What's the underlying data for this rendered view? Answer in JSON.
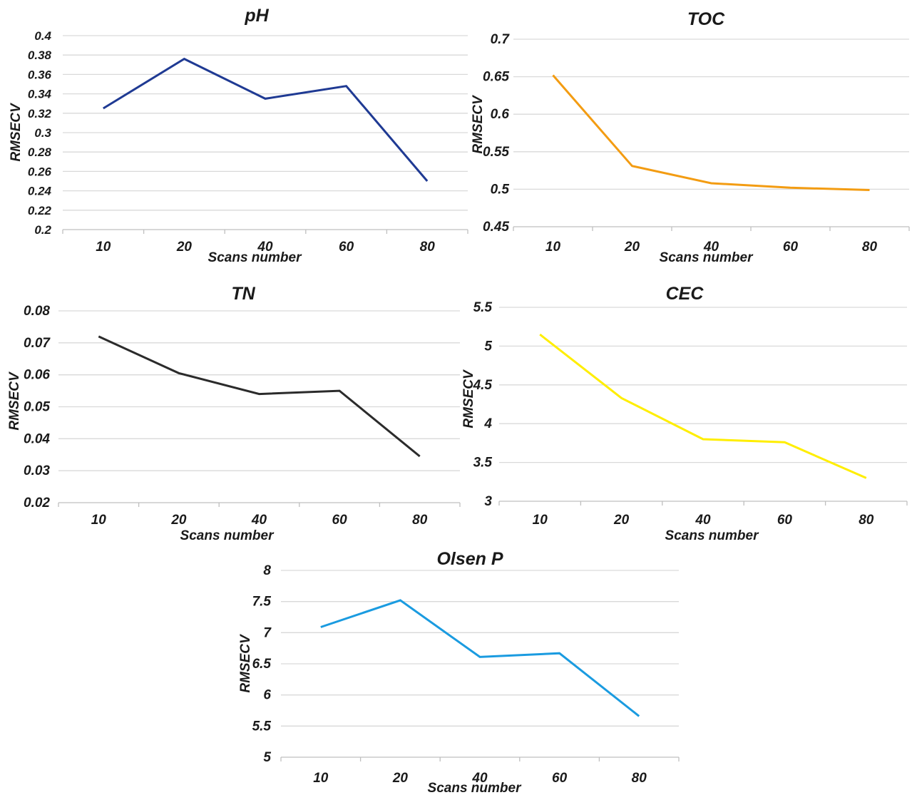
{
  "chart_data": [
    {
      "type": "line",
      "title": "pH",
      "xlabel": "Scans number",
      "ylabel": "RMSECV",
      "categories": [
        "10",
        "20",
        "40",
        "60",
        "80"
      ],
      "values": [
        0.325,
        0.376,
        0.335,
        0.348,
        0.25
      ],
      "ylim": [
        0.2,
        0.4
      ],
      "yticks": [
        "0.2",
        "0.22",
        "0.24",
        "0.26",
        "0.28",
        "0.3",
        "0.32",
        "0.34",
        "0.36",
        "0.38",
        "0.4"
      ],
      "grid": true,
      "color": "#1f3a93"
    },
    {
      "type": "line",
      "title": "TOC",
      "xlabel": "Scans number",
      "ylabel": "RMSECV",
      "categories": [
        "10",
        "20",
        "40",
        "60",
        "80"
      ],
      "values": [
        0.652,
        0.531,
        0.508,
        0.502,
        0.499
      ],
      "ylim": [
        0.45,
        0.7
      ],
      "yticks": [
        "0.45",
        "0.5",
        "0.55",
        "0.6",
        "0.65",
        "0.7"
      ],
      "grid": true,
      "color": "#f39c12"
    },
    {
      "type": "line",
      "title": "TN",
      "xlabel": "Scans number",
      "ylabel": "RMSECV",
      "categories": [
        "10",
        "20",
        "40",
        "60",
        "80"
      ],
      "values": [
        0.072,
        0.0605,
        0.054,
        0.055,
        0.0345
      ],
      "ylim": [
        0.02,
        0.08
      ],
      "yticks": [
        "0.02",
        "0.03",
        "0.04",
        "0.05",
        "0.06",
        "0.07",
        "0.08"
      ],
      "grid": true,
      "color": "#2b2b2b"
    },
    {
      "type": "line",
      "title": "CEC",
      "xlabel": "Scans number",
      "ylabel": "RMSECV",
      "categories": [
        "10",
        "20",
        "40",
        "60",
        "80"
      ],
      "values": [
        5.15,
        4.33,
        3.8,
        3.76,
        3.3
      ],
      "ylim": [
        3,
        5.5
      ],
      "yticks": [
        "3",
        "3.5",
        "4",
        "4.5",
        "5",
        "5.5"
      ],
      "grid": true,
      "color": "#ffee00"
    },
    {
      "type": "line",
      "title": "Olsen P",
      "xlabel": "Scans number",
      "ylabel": "RMSECV",
      "categories": [
        "10",
        "20",
        "40",
        "60",
        "80"
      ],
      "values": [
        7.09,
        7.52,
        6.61,
        6.67,
        5.66
      ],
      "ylim": [
        5,
        8
      ],
      "yticks": [
        "5",
        "5.5",
        "6",
        "6.5",
        "7",
        "7.5",
        "8"
      ],
      "grid": true,
      "color": "#1a9be0"
    }
  ]
}
